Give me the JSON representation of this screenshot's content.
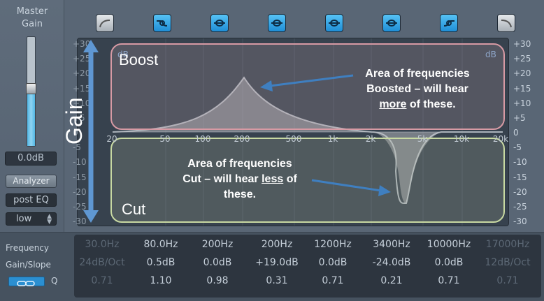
{
  "left_panel": {
    "master_label_1": "Master",
    "master_label_2": "Gain",
    "gain_value": "0.0dB",
    "analyzer_btn": "Analyzer",
    "analyzer_mode": "post EQ",
    "resolution": "low"
  },
  "bands": {
    "count": 8,
    "active": [
      false,
      true,
      true,
      true,
      true,
      true,
      true,
      false
    ]
  },
  "scale": {
    "left": [
      "+30",
      "+25",
      "+20",
      "+15",
      "+10",
      "+5",
      "0",
      "-5",
      "-10",
      "-15",
      "-20",
      "-25",
      "-30"
    ],
    "right": [
      "+30",
      "+25",
      "+20",
      "+15",
      "+10",
      "+5",
      "0",
      "-5",
      "-10",
      "-15",
      "-20",
      "-25",
      "-30"
    ],
    "db_unit": "dB"
  },
  "freq_axis": [
    "20",
    "50",
    "100",
    "200",
    "500",
    "1k",
    "2k",
    "5k",
    "10k",
    "20k"
  ],
  "annotations": {
    "boost": "Boost",
    "cut": "Cut",
    "gain": "Gain",
    "boost_note_1": "Area of frequencies",
    "boost_note_2": "Boosted – will hear",
    "boost_note_3a": "more",
    "boost_note_3b": " of these.",
    "cut_note_1": "Area of frequencies",
    "cut_note_2a": "Cut – will hear ",
    "cut_note_2b": "less",
    "cut_note_2c": " of",
    "cut_note_3": "these."
  },
  "bottom": {
    "row_labels": [
      "Frequency",
      "Gain/Slope",
      "Q"
    ],
    "frequency": [
      "30.0Hz",
      "80.0Hz",
      "200Hz",
      "200Hz",
      "1200Hz",
      "3400Hz",
      "10000Hz",
      "17000Hz"
    ],
    "gain": [
      "24dB/Oct",
      "0.5dB",
      "0.0dB",
      "+19.0dB",
      "0.0dB",
      "-24.0dB",
      "0.0dB",
      "12dB/Oct"
    ],
    "q": [
      "0.71",
      "1.10",
      "0.98",
      "0.31",
      "0.71",
      "0.21",
      "0.71",
      "0.71"
    ],
    "dim": [
      true,
      false,
      false,
      false,
      false,
      false,
      false,
      true
    ]
  },
  "colors": {
    "accent": "#2b9ee8",
    "boost_border": "#d79aa4",
    "cut_border": "#c8d9a2",
    "arrow": "#3f7fc0"
  }
}
